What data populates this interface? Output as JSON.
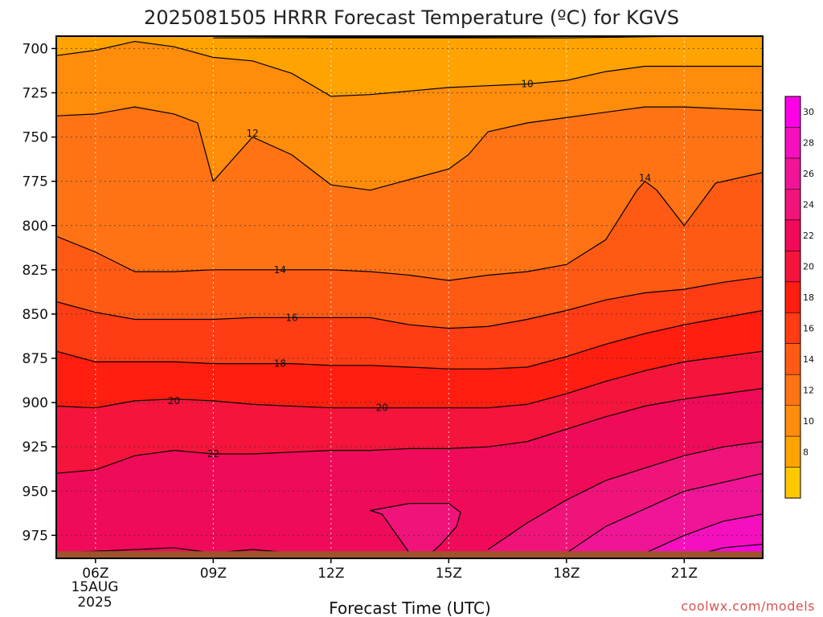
{
  "chart_data": {
    "type": "heatmap",
    "title": "2025081505 HRRR Forecast Temperature (ºC) for KGVS",
    "xlabel": "Forecast Time (UTC)",
    "ylabel": "",
    "x_ticks": [
      "06Z",
      "09Z",
      "12Z",
      "15Z",
      "18Z",
      "21Z"
    ],
    "x_tick_values": [
      6,
      9,
      12,
      15,
      18,
      21
    ],
    "x_range": [
      5,
      23
    ],
    "date_label": "15AUG",
    "year_label": "2025",
    "y_ticks": [
      700,
      725,
      750,
      775,
      800,
      825,
      850,
      875,
      900,
      925,
      950,
      975
    ],
    "y_range": [
      693,
      988
    ],
    "y_units": "hPa",
    "grid": true,
    "colorbar": {
      "levels": [
        6,
        8,
        10,
        12,
        14,
        16,
        18,
        20,
        22,
        24,
        26,
        28,
        30,
        32
      ],
      "tick_labels": [
        "8",
        "10",
        "12",
        "14",
        "16",
        "18",
        "20",
        "22",
        "24",
        "26",
        "28",
        "30"
      ],
      "tick_values": [
        8,
        10,
        12,
        14,
        16,
        18,
        20,
        22,
        24,
        26,
        28,
        30
      ],
      "colors": [
        "#ffc800",
        "#ffa300",
        "#ff8c0a",
        "#ff7314",
        "#ff5a14",
        "#ff3c14",
        "#ff1e0f",
        "#f5143c",
        "#f00a5a",
        "#f0147a",
        "#f01496",
        "#f50fbe",
        "#ff00e6"
      ]
    },
    "series": [
      {
        "level": 8,
        "x": [
          9,
          12,
          15,
          18,
          21
        ],
        "y": [
          694,
          694,
          694,
          694,
          693
        ]
      },
      {
        "level": 10,
        "x": [
          5,
          6,
          7,
          8,
          9,
          10,
          11,
          12,
          13,
          14,
          15,
          16,
          17,
          18,
          19,
          20,
          21,
          22,
          23
        ],
        "y": [
          704,
          701,
          696,
          699,
          705,
          707,
          714,
          727,
          726,
          724,
          722,
          721,
          720,
          718,
          713,
          710,
          710,
          710,
          710
        ]
      },
      {
        "level": 12,
        "x": [
          5,
          6,
          7,
          8,
          8.6,
          9,
          9.6,
          10,
          11,
          12,
          13,
          14,
          15,
          15.5,
          16,
          17,
          18,
          19,
          20,
          21,
          22,
          23
        ],
        "y": [
          738,
          737,
          733,
          737,
          742,
          775,
          760,
          750,
          760,
          777,
          780,
          774,
          768,
          760,
          747,
          742,
          739,
          736,
          733,
          733,
          734,
          735
        ]
      },
      {
        "level": 14,
        "x": [
          5,
          6,
          7,
          8,
          9,
          10,
          11,
          12,
          13,
          14,
          15,
          16,
          17,
          18,
          19,
          19.8,
          20,
          20.3,
          21,
          21.8,
          23
        ],
        "y": [
          806,
          815,
          826,
          826,
          825,
          825,
          825,
          825,
          826,
          828,
          831,
          828,
          826,
          822,
          808,
          780,
          775,
          780,
          800,
          776,
          770
        ]
      },
      {
        "level": 16,
        "x": [
          5,
          6,
          7,
          8,
          9,
          10,
          11,
          12,
          13,
          14,
          15,
          16,
          17,
          18,
          19,
          20,
          21,
          22,
          23
        ],
        "y": [
          843,
          849,
          853,
          853,
          853,
          852,
          852,
          852,
          852,
          856,
          858,
          857,
          853,
          848,
          842,
          838,
          836,
          832,
          829
        ]
      },
      {
        "level": 18,
        "x": [
          5,
          6,
          7,
          8,
          9,
          10,
          11,
          12,
          13,
          14,
          15,
          16,
          17,
          18,
          19,
          20,
          21,
          22,
          23
        ],
        "y": [
          871,
          877,
          877,
          877,
          878,
          878,
          878,
          879,
          879,
          880,
          881,
          881,
          880,
          874,
          867,
          861,
          856,
          852,
          848
        ]
      },
      {
        "level": 20,
        "x": [
          5,
          6,
          7,
          8,
          9,
          10,
          11,
          12,
          13,
          14,
          15,
          16,
          17,
          18,
          19,
          20,
          21,
          22,
          23
        ],
        "y": [
          902,
          903,
          899,
          898,
          899,
          901,
          902,
          903,
          903,
          903,
          903,
          903,
          901,
          895,
          888,
          882,
          877,
          874,
          871
        ]
      },
      {
        "level": 22,
        "x": [
          5,
          6,
          7,
          8,
          9,
          10,
          11,
          12,
          13,
          14,
          15,
          16,
          17,
          18,
          19,
          20,
          21,
          22,
          23
        ],
        "y": [
          940,
          938,
          930,
          927,
          929,
          929,
          928,
          927,
          927,
          926,
          926,
          925,
          922,
          915,
          908,
          902,
          898,
          895,
          892
        ]
      },
      {
        "level": 24,
        "x": [
          16,
          17,
          18,
          19,
          20,
          21,
          22,
          23
        ],
        "y": [
          983,
          968,
          955,
          944,
          937,
          930,
          925,
          922
        ]
      },
      {
        "level": 26,
        "x": [
          18,
          19,
          20,
          21,
          22,
          23
        ],
        "y": [
          985,
          970,
          960,
          950,
          945,
          940
        ]
      },
      {
        "level": 28,
        "x": [
          20,
          21,
          22,
          23
        ],
        "y": [
          985,
          975,
          967,
          963
        ]
      },
      {
        "level": 30,
        "x": [
          21,
          22,
          23
        ],
        "y": [
          988,
          982,
          980
        ]
      },
      {
        "level": 24,
        "x": [
          13,
          14,
          15,
          15.3,
          15.2,
          14.8,
          14.5,
          14,
          13.3
        ],
        "y": [
          961,
          957,
          957,
          962,
          970,
          980,
          986,
          985,
          963
        ]
      },
      {
        "level": 22,
        "x": [
          5,
          6,
          7,
          8,
          9,
          10,
          11,
          12,
          13,
          14,
          15
        ],
        "y": [
          985,
          984,
          983,
          982,
          985,
          983,
          985,
          987,
          986,
          987,
          987
        ]
      }
    ],
    "contour_labels": [
      {
        "text": "10",
        "x": 17,
        "y": 720
      },
      {
        "text": "12",
        "x": 10,
        "y": 748
      },
      {
        "text": "14",
        "x": 10.7,
        "y": 825
      },
      {
        "text": "14",
        "x": 20,
        "y": 773
      },
      {
        "text": "16",
        "x": 11,
        "y": 852
      },
      {
        "text": "18",
        "x": 10.7,
        "y": 878
      },
      {
        "text": "20",
        "x": 8,
        "y": 899
      },
      {
        "text": "20",
        "x": 13.3,
        "y": 903
      },
      {
        "text": "22",
        "x": 9,
        "y": 929
      }
    ],
    "ground_color": "#a0522d"
  },
  "credit": "coolwx.com/models"
}
